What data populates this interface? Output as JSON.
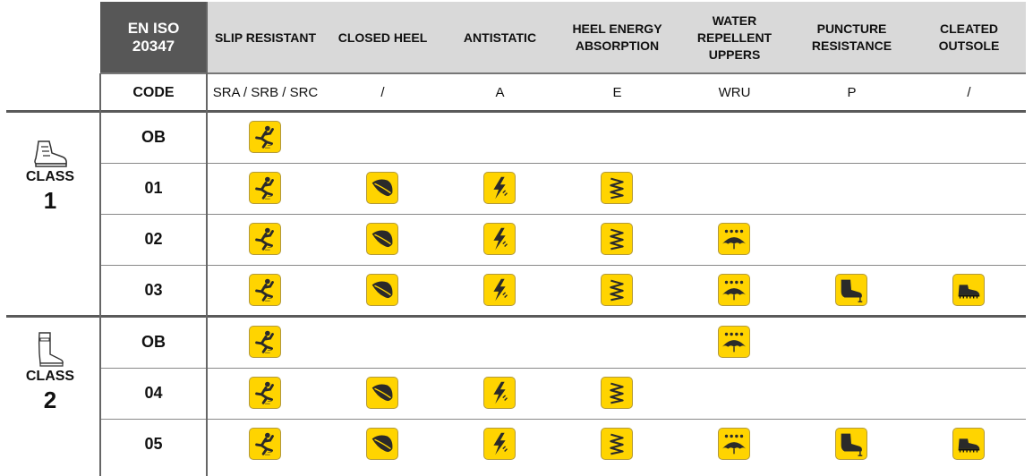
{
  "header": {
    "standard_line1": "EN ISO",
    "standard_line2": "20347",
    "code_label": "CODE"
  },
  "columns": [
    {
      "label": "SLIP RESISTANT",
      "code": "SRA / SRB / SRC",
      "icon": "slip-person-icon"
    },
    {
      "label": "CLOSED HEEL",
      "code": "/",
      "icon": "closed-heel-icon"
    },
    {
      "label": "ANTISTATIC",
      "code": "A",
      "icon": "lightning-icon"
    },
    {
      "label": "HEEL ENERGY ABSORPTION",
      "code": "E",
      "icon": "spring-icon"
    },
    {
      "label": "WATER REPELLENT UPPERS",
      "code": "WRU",
      "icon": "umbrella-rain-icon"
    },
    {
      "label": "PUNCTURE RESISTANCE",
      "code": "P",
      "icon": "boot-nail-icon"
    },
    {
      "label": "CLEATED OUTSOLE",
      "code": "/",
      "icon": "cleated-shoe-icon"
    }
  ],
  "classes": [
    {
      "label": "CLASS",
      "number": "1",
      "icon": "hiking-boot-icon",
      "rows": [
        {
          "code": "OB",
          "features": [
            1,
            0,
            0,
            0,
            0,
            0,
            0
          ]
        },
        {
          "code": "01",
          "features": [
            1,
            1,
            1,
            1,
            0,
            0,
            0
          ]
        },
        {
          "code": "02",
          "features": [
            1,
            1,
            1,
            1,
            1,
            0,
            0
          ]
        },
        {
          "code": "03",
          "features": [
            1,
            1,
            1,
            1,
            1,
            1,
            1
          ]
        }
      ]
    },
    {
      "label": "CLASS",
      "number": "2",
      "icon": "rubber-boot-icon",
      "rows": [
        {
          "code": "OB",
          "features": [
            1,
            0,
            0,
            0,
            1,
            0,
            0
          ]
        },
        {
          "code": "04",
          "features": [
            1,
            1,
            1,
            1,
            0,
            0,
            0
          ]
        },
        {
          "code": "05",
          "features": [
            1,
            1,
            1,
            1,
            1,
            1,
            1
          ]
        }
      ]
    }
  ],
  "colors": {
    "icon_fill": "#ffd400",
    "header_dark": "#575757",
    "header_light": "#d9d9d9"
  }
}
